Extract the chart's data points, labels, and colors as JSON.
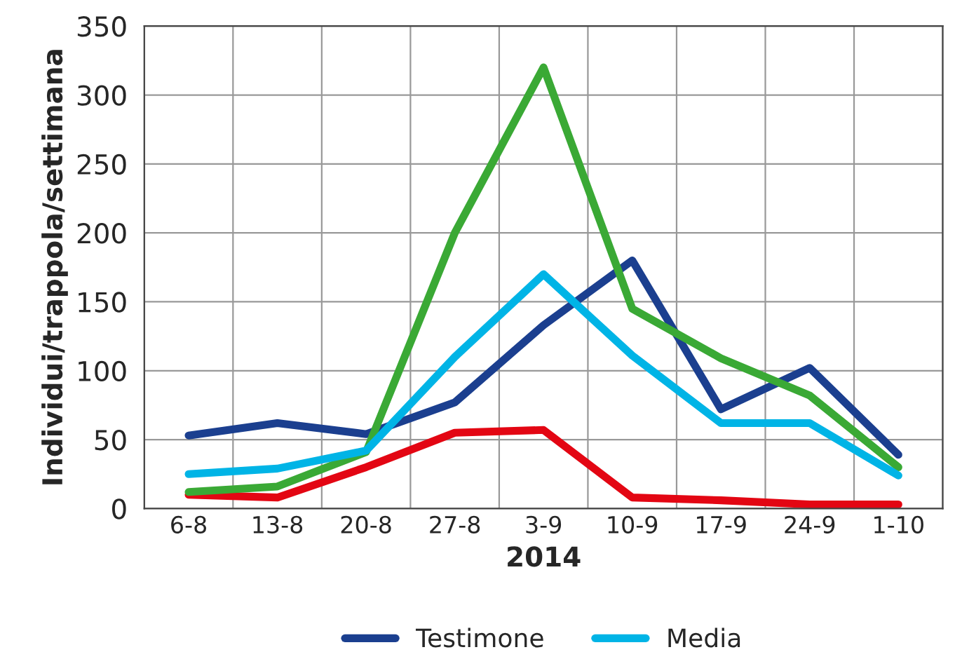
{
  "chart_data": {
    "type": "line",
    "xlabel": "2014",
    "ylabel": "Individui/trappola/settimana",
    "categories": [
      "6-8",
      "13-8",
      "20-8",
      "27-8",
      "3-9",
      "10-9",
      "17-9",
      "24-9",
      "1-10"
    ],
    "series": [
      {
        "name": "Testimone",
        "color": "#1b3f8f",
        "values": [
          53,
          62,
          54,
          77,
          133,
          180,
          72,
          102,
          39
        ]
      },
      {
        "color": "#e30613",
        "values": [
          10,
          8,
          30,
          55,
          57,
          8,
          6,
          3,
          3
        ]
      },
      {
        "color": "#3aa935",
        "values": [
          12,
          16,
          41,
          200,
          320,
          145,
          109,
          82,
          30
        ]
      },
      {
        "name": "Media",
        "color": "#00b4e6",
        "values": [
          25,
          29,
          42,
          110,
          170,
          111,
          62,
          62,
          24
        ]
      }
    ],
    "ylim": [
      0,
      350
    ],
    "yticks": [
      0,
      50,
      100,
      150,
      200,
      250,
      300,
      350
    ],
    "grid": true,
    "legend": "bottom",
    "marker": "none",
    "line_style": "solid"
  }
}
